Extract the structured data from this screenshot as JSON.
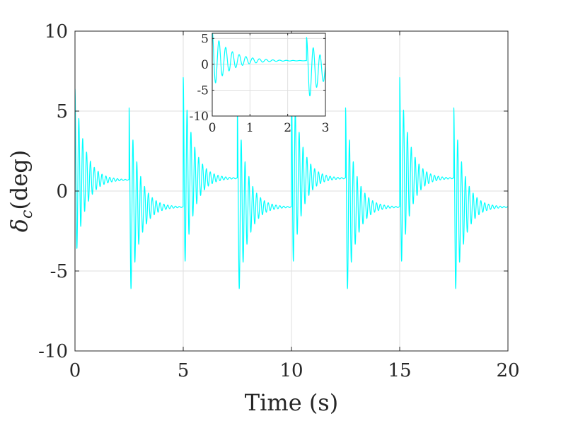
{
  "chart_data": [
    {
      "type": "line",
      "title": "",
      "xlabel": "Time (s)",
      "ylabel_symbol": "δ",
      "ylabel_subscript": "c",
      "ylabel_unit": "(deg)",
      "xlim": [
        0,
        20
      ],
      "ylim": [
        -10,
        10
      ],
      "xticks": [
        0,
        5,
        10,
        15,
        20
      ],
      "xtick_labels": [
        "0",
        "5",
        "10",
        "15",
        "20"
      ],
      "yticks": [
        -10,
        -5,
        0,
        5,
        10
      ],
      "ytick_labels": [
        "-10",
        "-5",
        "0",
        "5",
        "10"
      ],
      "grid": true,
      "line_color": "#00ffff",
      "signal": {
        "description_of_shape": "oscillation restarted every 2.5 s with exponentially decaying amplitude and a slowly decaying offset",
        "period_s": 2.5,
        "oscillation_frequency_hz": 5.6,
        "segments": [
          {
            "t_start": 0.0,
            "peak_max": 6.4,
            "peak_min": -4.5,
            "end_offset": 0.7
          },
          {
            "t_start": 2.5,
            "peak_max": 5.2,
            "peak_min": -7.2,
            "end_offset": -1.0
          },
          {
            "t_start": 5.0,
            "peak_max": 7.1,
            "peak_min": -5.5,
            "end_offset": 0.8
          },
          {
            "t_start": 7.5,
            "peak_max": 5.2,
            "peak_min": -7.2,
            "end_offset": -1.0
          },
          {
            "t_start": 10.0,
            "peak_max": 7.1,
            "peak_min": -5.5,
            "end_offset": 0.8
          },
          {
            "t_start": 12.5,
            "peak_max": 5.2,
            "peak_min": -7.2,
            "end_offset": -1.0
          },
          {
            "t_start": 15.0,
            "peak_max": 7.1,
            "peak_min": -5.5,
            "end_offset": 0.8
          },
          {
            "t_start": 17.5,
            "peak_max": 5.2,
            "peak_min": -7.2,
            "end_offset": -1.0
          }
        ]
      }
    },
    {
      "type": "line",
      "title": "",
      "xlabel": "",
      "ylabel": "",
      "xlim": [
        0,
        3
      ],
      "ylim": [
        -10,
        6
      ],
      "xticks": [
        0,
        1,
        2,
        3
      ],
      "xtick_labels": [
        "0",
        "1",
        "2",
        "3"
      ],
      "yticks": [
        -10,
        -5,
        0,
        5
      ],
      "ytick_labels": [
        "-10",
        "-5",
        "0",
        "5"
      ],
      "grid": true,
      "line_color": "#00ffff",
      "signal": {
        "oscillation_frequency_hz": 5.6,
        "segments": [
          {
            "t_start": 0.0,
            "peak_max": 6.4,
            "peak_min": -4.5,
            "end_offset": 0.7
          },
          {
            "t_start": 2.5,
            "peak_max": 5.2,
            "peak_min": -7.2,
            "end_offset": -1.0
          }
        ]
      }
    }
  ]
}
